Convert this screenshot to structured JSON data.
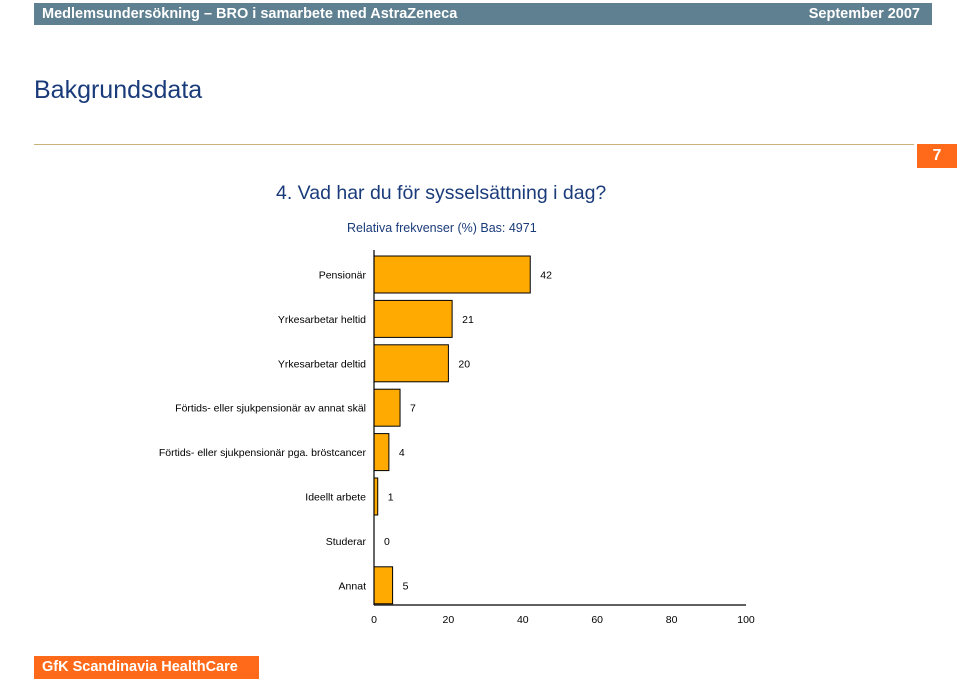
{
  "header": {
    "left": "Medlemsundersökning – BRO i samarbete med AstraZeneca",
    "right": "September 2007"
  },
  "page": {
    "heading": "Bakgrundsdata",
    "number": "7"
  },
  "footer": {
    "logo": "GfK Scandinavia HealthCare"
  },
  "colors": {
    "header_bar": "#5f8090",
    "accent": "#ff6a1a",
    "bar_fill": "#ffaa00",
    "heading": "#1a3b7a"
  },
  "chart_data": {
    "type": "bar",
    "orientation": "horizontal",
    "title": "4. Vad har du för sysselsättning i dag?",
    "subtitle": "Relativa frekvenser (%) Bas: 4971",
    "categories": [
      "Pensionär",
      "Yrkesarbetar heltid",
      "Yrkesarbetar deltid",
      "Förtids- eller sjukpensionär av annat skäl",
      "Förtids- eller sjukpensionär pga. bröstcancer",
      "Ideellt arbete",
      "Studerar",
      "Annat"
    ],
    "values": [
      42,
      21,
      20,
      7,
      4,
      1,
      0,
      5
    ],
    "xlim": [
      0,
      100
    ],
    "xticks": [
      0,
      20,
      40,
      60,
      80,
      100
    ],
    "grid": false,
    "legend": "none"
  }
}
